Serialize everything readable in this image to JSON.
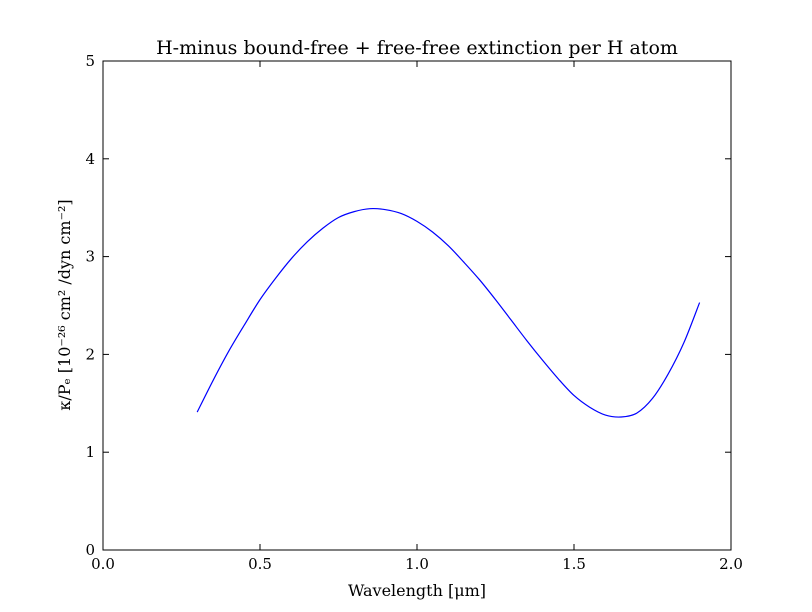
{
  "chart_data": {
    "type": "line",
    "title": "H-minus bound-free + free-free extinction per H atom",
    "xlabel": "Wavelength [μm]",
    "ylabel": "κ/Pₑ [10⁻²⁶ cm² /dyn cm⁻²]",
    "xlim": [
      0.0,
      2.0
    ],
    "ylim": [
      0,
      5
    ],
    "xticks": [
      0.0,
      0.5,
      1.0,
      1.5,
      2.0
    ],
    "xtick_labels": [
      "0.0",
      "0.5",
      "1.0",
      "1.5",
      "2.0"
    ],
    "yticks": [
      0,
      1,
      2,
      3,
      4,
      5
    ],
    "ytick_labels": [
      "0",
      "1",
      "2",
      "3",
      "4",
      "5"
    ],
    "grid": false,
    "legend": "none",
    "series": [
      {
        "color": "#0000ff",
        "x": [
          0.3,
          0.35,
          0.4,
          0.45,
          0.5,
          0.55,
          0.6,
          0.65,
          0.7,
          0.75,
          0.8,
          0.85,
          0.9,
          0.95,
          1.0,
          1.05,
          1.1,
          1.15,
          1.2,
          1.25,
          1.3,
          1.35,
          1.4,
          1.45,
          1.5,
          1.55,
          1.6,
          1.65,
          1.7,
          1.75,
          1.8,
          1.85,
          1.9
        ],
        "y": [
          1.41,
          1.73,
          2.03,
          2.3,
          2.56,
          2.78,
          2.98,
          3.15,
          3.29,
          3.4,
          3.46,
          3.49,
          3.48,
          3.44,
          3.36,
          3.25,
          3.11,
          2.94,
          2.76,
          2.56,
          2.35,
          2.14,
          1.94,
          1.75,
          1.58,
          1.46,
          1.38,
          1.36,
          1.4,
          1.55,
          1.8,
          2.12,
          2.53
        ]
      }
    ]
  }
}
